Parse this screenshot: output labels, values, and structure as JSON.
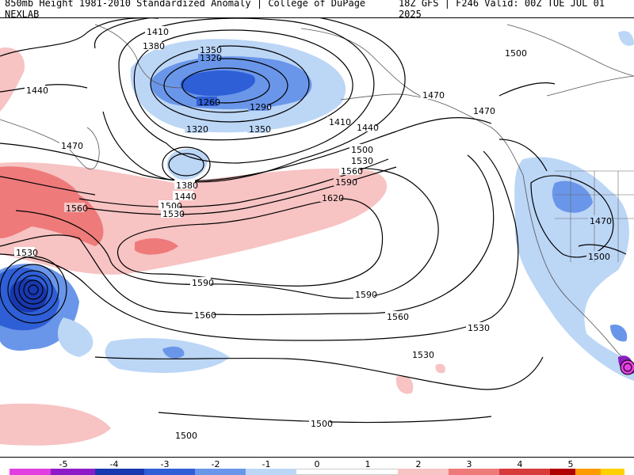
{
  "header": {
    "left": "850mb Height 1981-2010 Standardized Anomaly | College of DuPage NEXLAB",
    "right": "18Z GFS | F246 Valid: 00Z TUE JUL 01 2025"
  },
  "contours": {
    "c1260": "1260",
    "c1290": "1290",
    "c1320a": "1320",
    "c1320b": "1320",
    "c1350a": "1350",
    "c1350b": "1350",
    "c1380a": "1380",
    "c1380b": "1380",
    "c1410a": "1410",
    "c1410b": "1410",
    "c1440a": "1440",
    "c1440b": "1440",
    "c1440c": "1440",
    "c1470a": "1470",
    "c1470b": "1470",
    "c1470c": "1470",
    "c1470d": "1470",
    "c1500a": "1500",
    "c1500b": "1500",
    "c1500c": "1500",
    "c1500d": "1500",
    "c1500e": "1500",
    "c1500f": "1500",
    "c1530a": "1530",
    "c1530b": "1530",
    "c1530c": "1530",
    "c1530d": "1530",
    "c1530e": "1530",
    "c1560a": "1560",
    "c1560b": "1560",
    "c1560c": "1560",
    "c1560d": "1560",
    "c1590a": "1590",
    "c1590b": "1590",
    "c1590c": "1590",
    "c1620": "1620"
  },
  "colorbar": {
    "ticks": [
      "-5",
      "-4",
      "-3",
      "-2",
      "-1",
      "0",
      "1",
      "2",
      "3",
      "4",
      "5"
    ],
    "colors": [
      "#e23fe0",
      "#8e1bc8",
      "#1838b0",
      "#2f5fd6",
      "#6a96ea",
      "#bcd6f6",
      "#ffffff",
      "#ffffff",
      "#f7c3c3",
      "#ee7a7a",
      "#d63a3a",
      "#b00000",
      "#ff9a00",
      "#ffd000"
    ]
  }
}
